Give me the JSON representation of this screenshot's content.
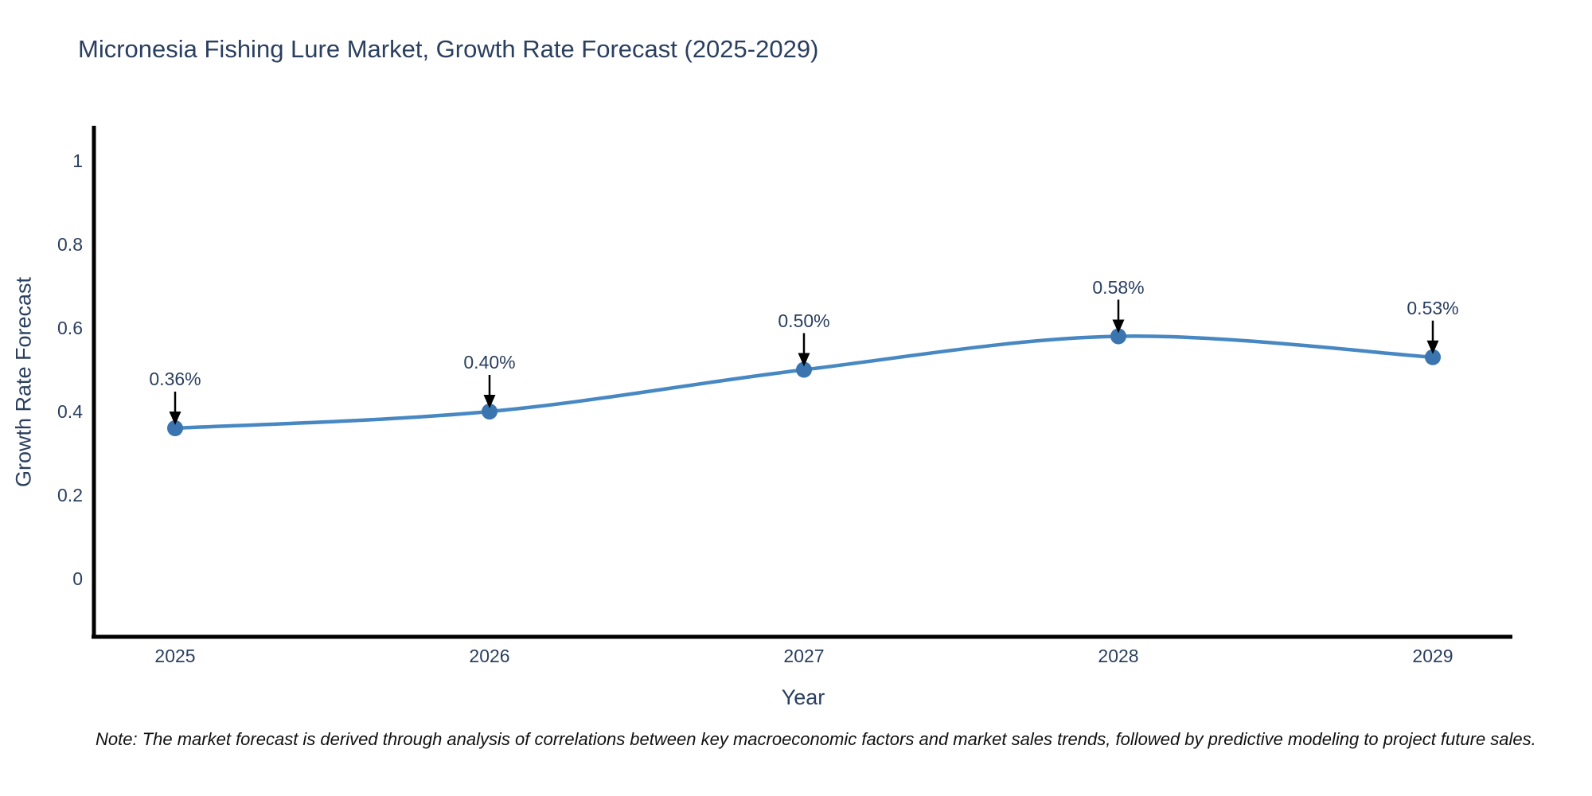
{
  "title": "Micronesia Fishing Lure Market, Growth Rate Forecast (2025-2029)",
  "note": "Note: The market forecast is derived through analysis of correlations between key macroeconomic factors and market sales trends, followed by predictive modeling to project future sales.",
  "chart_data": {
    "type": "line",
    "title": "Micronesia Fishing Lure Market, Growth Rate Forecast (2025-2029)",
    "xlabel": "Year",
    "ylabel": "Growth Rate Forecast",
    "categories": [
      "2025",
      "2026",
      "2027",
      "2028",
      "2029"
    ],
    "values": [
      0.36,
      0.4,
      0.5,
      0.58,
      0.53
    ],
    "point_labels": [
      "0.36%",
      "0.40%",
      "0.50%",
      "0.58%",
      "0.53%"
    ],
    "y_ticks": [
      "1",
      "0.8",
      "0.6",
      "0.4",
      "0.2",
      "0"
    ],
    "ylim": [
      -0.14,
      1.08
    ],
    "grid": false,
    "legend_position": "none",
    "line_shape": "spline",
    "line_color": "#4788c3",
    "marker_color": "#3a75b0",
    "axis_color": "#000000",
    "text_color": "#2a3f5f",
    "annotation_arrow_color": "#000000"
  }
}
